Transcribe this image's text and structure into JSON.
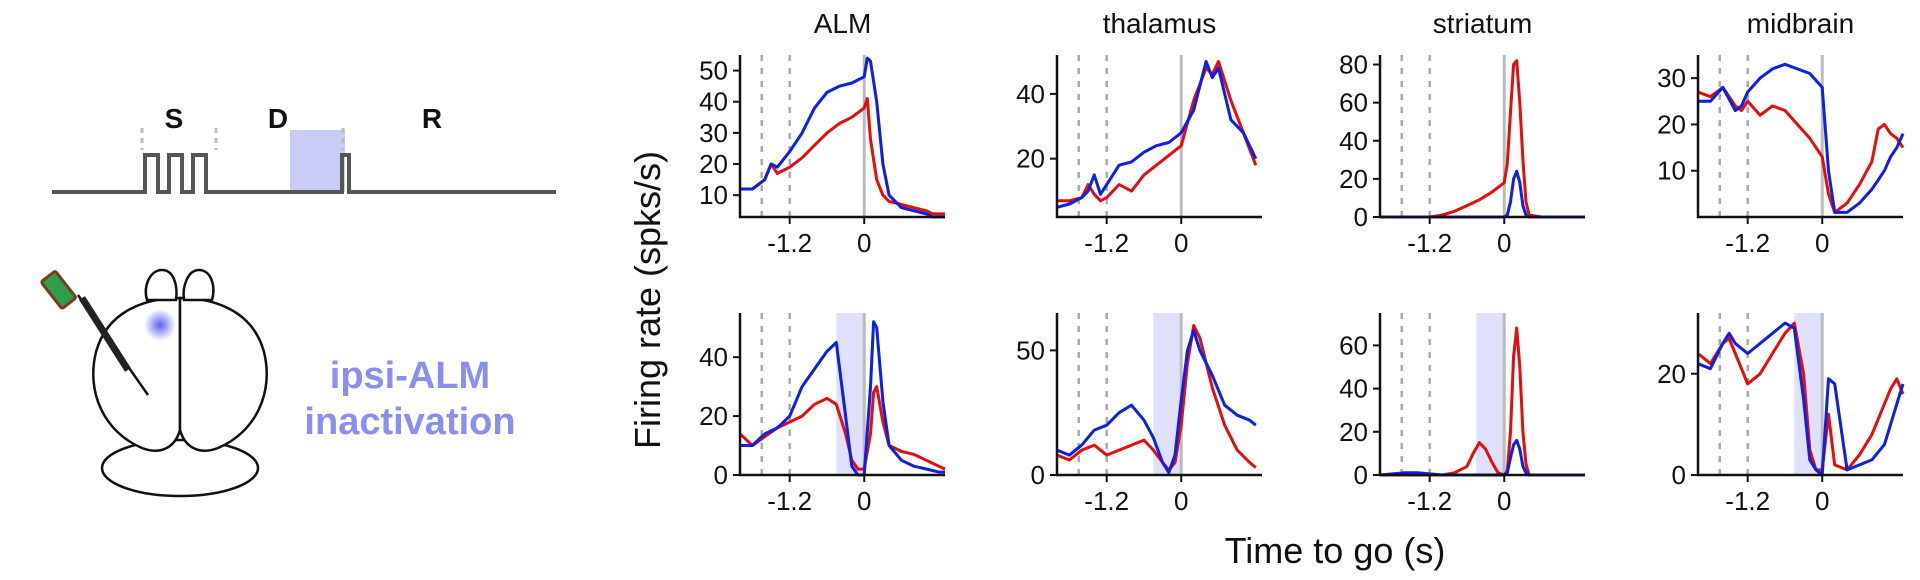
{
  "schematic": {
    "epochs": [
      "S",
      "D",
      "R"
    ],
    "inactivation_label": [
      "ipsi-ALM",
      "inactivation"
    ],
    "colors": {
      "trace": "#555555",
      "light": "#c9ccf7",
      "laser": "#7b80f2"
    }
  },
  "labels": {
    "ylabel": "Firing rate (spks/s)",
    "xlabel": "Time to go (s)"
  },
  "chart_data": [
    {
      "type": "line",
      "title": "ALM",
      "row": "control",
      "ylim": [
        3,
        55
      ],
      "yticks": [
        10,
        20,
        30,
        40,
        50
      ],
      "xlim": [
        -2.0,
        1.3
      ],
      "xticks": [
        -1.2,
        0
      ],
      "xticklabels": [
        "-1.2",
        "0"
      ],
      "epoch_lines": [
        -1.65,
        -1.2
      ],
      "go_line": 0,
      "shade": null,
      "series": [
        {
          "color": "#e01010",
          "x": [
            -2.0,
            -1.8,
            -1.6,
            -1.5,
            -1.4,
            -1.2,
            -1.0,
            -0.8,
            -0.6,
            -0.4,
            -0.2,
            0.0,
            0.05,
            0.1,
            0.2,
            0.3,
            0.4,
            0.6,
            0.8,
            1.0,
            1.1,
            1.3
          ],
          "y": [
            12,
            12,
            15,
            20,
            17,
            19,
            22,
            26,
            30,
            33,
            35,
            38,
            41,
            28,
            15,
            10,
            8,
            7,
            6,
            5,
            4,
            4
          ]
        },
        {
          "color": "#1020e0",
          "x": [
            -2.0,
            -1.8,
            -1.6,
            -1.5,
            -1.4,
            -1.2,
            -1.0,
            -0.8,
            -0.6,
            -0.4,
            -0.2,
            0.0,
            0.05,
            0.1,
            0.2,
            0.3,
            0.4,
            0.6,
            0.8,
            1.0,
            1.1,
            1.3
          ],
          "y": [
            12,
            12,
            15,
            20,
            19,
            24,
            30,
            38,
            43,
            45,
            46,
            48,
            54,
            53,
            40,
            20,
            10,
            6,
            5,
            4,
            3,
            3
          ]
        }
      ]
    },
    {
      "type": "line",
      "title": "thalamus",
      "row": "control",
      "ylim": [
        2,
        52
      ],
      "yticks": [
        20,
        40
      ],
      "xlim": [
        -2.0,
        1.3
      ],
      "xticks": [
        -1.2,
        0
      ],
      "xticklabels": [
        "-1.2",
        "0"
      ],
      "epoch_lines": [
        -1.65,
        -1.2
      ],
      "go_line": 0,
      "shade": null,
      "series": [
        {
          "color": "#e01010",
          "x": [
            -2.0,
            -1.8,
            -1.6,
            -1.5,
            -1.4,
            -1.3,
            -1.2,
            -1.0,
            -0.8,
            -0.6,
            -0.4,
            -0.2,
            0.0,
            0.2,
            0.4,
            0.5,
            0.6,
            0.8,
            1.0,
            1.2
          ],
          "y": [
            7,
            7,
            8,
            12,
            9,
            7,
            8,
            12,
            10,
            15,
            18,
            21,
            24,
            38,
            48,
            46,
            50,
            38,
            28,
            18
          ]
        },
        {
          "color": "#1020e0",
          "x": [
            -2.0,
            -1.8,
            -1.6,
            -1.5,
            -1.4,
            -1.3,
            -1.2,
            -1.0,
            -0.8,
            -0.6,
            -0.4,
            -0.2,
            0.0,
            0.2,
            0.4,
            0.5,
            0.6,
            0.8,
            1.0,
            1.2
          ],
          "y": [
            5,
            6,
            8,
            10,
            15,
            9,
            12,
            18,
            19,
            22,
            24,
            25,
            28,
            35,
            50,
            45,
            48,
            32,
            28,
            20
          ]
        }
      ]
    },
    {
      "type": "line",
      "title": "striatum",
      "row": "control",
      "ylim": [
        0,
        85
      ],
      "yticks": [
        0,
        20,
        40,
        60,
        80
      ],
      "xlim": [
        -2.0,
        1.3
      ],
      "xticks": [
        -1.2,
        0
      ],
      "xticklabels": [
        "-1.2",
        "0"
      ],
      "epoch_lines": [
        -1.65,
        -1.2
      ],
      "go_line": 0,
      "shade": null,
      "series": [
        {
          "color": "#e01010",
          "x": [
            -2.0,
            -1.4,
            -1.2,
            -1.0,
            -0.8,
            -0.6,
            -0.4,
            -0.2,
            0.0,
            0.05,
            0.1,
            0.15,
            0.2,
            0.25,
            0.3,
            0.35,
            0.4,
            0.6,
            1.3
          ],
          "y": [
            0,
            0,
            0,
            1,
            3,
            6,
            9,
            13,
            18,
            28,
            55,
            80,
            82,
            60,
            30,
            8,
            1,
            0,
            0
          ]
        },
        {
          "color": "#1020e0",
          "x": [
            -2.0,
            -1.0,
            -0.5,
            0.0,
            0.05,
            0.1,
            0.15,
            0.2,
            0.25,
            0.3,
            0.35,
            0.4,
            0.6,
            1.3
          ],
          "y": [
            0,
            0,
            0,
            0,
            1,
            8,
            20,
            24,
            18,
            6,
            1,
            0,
            0,
            0
          ]
        }
      ]
    },
    {
      "type": "line",
      "title": "midbrain",
      "row": "control",
      "ylim": [
        0,
        35
      ],
      "yticks": [
        10,
        20,
        30
      ],
      "xlim": [
        -2.0,
        1.3
      ],
      "xticks": [
        -1.2,
        0
      ],
      "xticklabels": [
        "-1.2",
        "0"
      ],
      "epoch_lines": [
        -1.65,
        -1.2
      ],
      "go_line": 0,
      "shade": null,
      "series": [
        {
          "color": "#e01010",
          "x": [
            -2.0,
            -1.8,
            -1.6,
            -1.4,
            -1.3,
            -1.2,
            -1.0,
            -0.8,
            -0.6,
            -0.4,
            -0.2,
            0.0,
            0.1,
            0.2,
            0.4,
            0.6,
            0.8,
            0.9,
            1.0,
            1.1,
            1.2,
            1.3
          ],
          "y": [
            27,
            26,
            28,
            24,
            23,
            25,
            22,
            24,
            23,
            20,
            17,
            13,
            5,
            1,
            3,
            7,
            12,
            19,
            20,
            18,
            17,
            15
          ]
        },
        {
          "color": "#1020e0",
          "x": [
            -2.0,
            -1.8,
            -1.6,
            -1.4,
            -1.3,
            -1.2,
            -1.0,
            -0.8,
            -0.6,
            -0.4,
            -0.2,
            0.0,
            0.1,
            0.2,
            0.4,
            0.6,
            0.8,
            0.9,
            1.0,
            1.1,
            1.2,
            1.3
          ],
          "y": [
            25,
            25,
            28,
            23,
            24,
            27,
            30,
            32,
            33,
            32,
            31,
            28,
            10,
            1,
            1,
            3,
            6,
            8,
            10,
            13,
            15,
            18
          ]
        }
      ]
    },
    {
      "type": "line",
      "title": "",
      "row": "inactivation",
      "ylim": [
        0,
        55
      ],
      "yticks": [
        0,
        20,
        40
      ],
      "xlim": [
        -2.0,
        1.3
      ],
      "xticks": [
        -1.2,
        0
      ],
      "xticklabels": [
        "-1.2",
        "0"
      ],
      "epoch_lines": [
        -1.65,
        -1.2
      ],
      "go_line": 0,
      "shade": [
        -0.45,
        0
      ],
      "series": [
        {
          "color": "#e01010",
          "x": [
            -2.0,
            -1.8,
            -1.6,
            -1.4,
            -1.2,
            -1.0,
            -0.8,
            -0.6,
            -0.45,
            -0.3,
            -0.2,
            -0.1,
            0.0,
            0.1,
            0.15,
            0.2,
            0.3,
            0.4,
            0.6,
            0.8,
            1.0,
            1.2,
            1.3
          ],
          "y": [
            14,
            10,
            13,
            16,
            18,
            20,
            24,
            26,
            24,
            14,
            5,
            2,
            2,
            14,
            28,
            30,
            18,
            10,
            8,
            7,
            5,
            3,
            2
          ]
        },
        {
          "color": "#1020e0",
          "x": [
            -2.0,
            -1.8,
            -1.6,
            -1.4,
            -1.2,
            -1.0,
            -0.8,
            -0.6,
            -0.45,
            -0.3,
            -0.2,
            -0.1,
            0.0,
            0.1,
            0.15,
            0.2,
            0.3,
            0.4,
            0.6,
            0.8,
            1.0,
            1.2,
            1.3
          ],
          "y": [
            10,
            10,
            14,
            16,
            20,
            30,
            36,
            42,
            45,
            20,
            3,
            0,
            0,
            30,
            52,
            50,
            25,
            10,
            5,
            3,
            2,
            1,
            1
          ]
        }
      ]
    },
    {
      "type": "line",
      "title": "",
      "row": "inactivation",
      "ylim": [
        0,
        65
      ],
      "yticks": [
        0,
        50
      ],
      "xlim": [
        -2.0,
        1.3
      ],
      "xticks": [
        -1.2,
        0
      ],
      "xticklabels": [
        "-1.2",
        "0"
      ],
      "epoch_lines": [
        -1.65,
        -1.2
      ],
      "go_line": 0,
      "shade": [
        -0.45,
        0
      ],
      "series": [
        {
          "color": "#e01010",
          "x": [
            -2.0,
            -1.8,
            -1.6,
            -1.4,
            -1.2,
            -1.0,
            -0.8,
            -0.6,
            -0.45,
            -0.3,
            -0.2,
            -0.1,
            0.0,
            0.1,
            0.2,
            0.3,
            0.5,
            0.7,
            0.9,
            1.1,
            1.2
          ],
          "y": [
            8,
            6,
            10,
            12,
            8,
            10,
            12,
            14,
            10,
            5,
            2,
            5,
            20,
            45,
            60,
            55,
            35,
            20,
            10,
            5,
            3
          ]
        },
        {
          "color": "#1020e0",
          "x": [
            -2.0,
            -1.8,
            -1.6,
            -1.4,
            -1.2,
            -1.0,
            -0.8,
            -0.6,
            -0.45,
            -0.3,
            -0.2,
            -0.1,
            0.0,
            0.1,
            0.2,
            0.3,
            0.5,
            0.7,
            0.9,
            1.1,
            1.2
          ],
          "y": [
            10,
            8,
            12,
            18,
            20,
            25,
            28,
            22,
            15,
            5,
            1,
            8,
            30,
            50,
            58,
            50,
            40,
            28,
            24,
            22,
            20
          ]
        }
      ]
    },
    {
      "type": "line",
      "title": "",
      "row": "inactivation",
      "ylim": [
        0,
        75
      ],
      "yticks": [
        0,
        20,
        40,
        60
      ],
      "xlim": [
        -2.0,
        1.3
      ],
      "xticks": [
        -1.2,
        0
      ],
      "xticklabels": [
        "-1.2",
        "0"
      ],
      "epoch_lines": [
        -1.65,
        -1.2
      ],
      "go_line": 0,
      "shade": [
        -0.45,
        0
      ],
      "series": [
        {
          "color": "#e01010",
          "x": [
            -2.0,
            -1.0,
            -0.8,
            -0.6,
            -0.5,
            -0.4,
            -0.3,
            -0.2,
            -0.1,
            0.0,
            0.05,
            0.1,
            0.15,
            0.2,
            0.25,
            0.3,
            0.35,
            0.4,
            0.6,
            1.3
          ],
          "y": [
            0,
            0,
            1,
            4,
            10,
            15,
            12,
            6,
            1,
            0,
            2,
            20,
            55,
            68,
            50,
            20,
            5,
            0,
            0,
            0
          ]
        },
        {
          "color": "#1020e0",
          "x": [
            -2.0,
            -1.6,
            -1.4,
            -1.0,
            -0.5,
            0.0,
            0.05,
            0.1,
            0.15,
            0.2,
            0.25,
            0.3,
            0.35,
            0.4,
            0.6,
            1.3
          ],
          "y": [
            0,
            1,
            1,
            0,
            0,
            0,
            1,
            8,
            14,
            16,
            12,
            4,
            1,
            0,
            0,
            0
          ]
        }
      ]
    },
    {
      "type": "line",
      "title": "",
      "row": "inactivation",
      "ylim": [
        0,
        32
      ],
      "yticks": [
        0,
        20
      ],
      "xlim": [
        -2.0,
        1.3
      ],
      "xticks": [
        -1.2,
        0
      ],
      "xticklabels": [
        "-1.2",
        "0"
      ],
      "epoch_lines": [
        -1.65,
        -1.2
      ],
      "go_line": 0,
      "shade": [
        -0.45,
        0
      ],
      "series": [
        {
          "color": "#e01010",
          "x": [
            -2.0,
            -1.8,
            -1.6,
            -1.5,
            -1.4,
            -1.2,
            -1.0,
            -0.8,
            -0.6,
            -0.45,
            -0.3,
            -0.2,
            -0.1,
            0.0,
            0.1,
            0.2,
            0.4,
            0.6,
            0.8,
            1.0,
            1.1,
            1.2,
            1.3
          ],
          "y": [
            24,
            22,
            26,
            27,
            24,
            18,
            20,
            24,
            28,
            30,
            20,
            5,
            1,
            1,
            12,
            2,
            1,
            4,
            8,
            14,
            17,
            19,
            16
          ]
        },
        {
          "color": "#1020e0",
          "x": [
            -2.0,
            -1.8,
            -1.6,
            -1.5,
            -1.4,
            -1.2,
            -1.0,
            -0.8,
            -0.6,
            -0.45,
            -0.3,
            -0.2,
            -0.1,
            0.0,
            0.1,
            0.2,
            0.4,
            0.6,
            0.8,
            1.0,
            1.1,
            1.2,
            1.3
          ],
          "y": [
            22,
            21,
            26,
            28,
            26,
            24,
            26,
            28,
            30,
            29,
            15,
            3,
            1,
            0,
            19,
            18,
            1,
            2,
            3,
            6,
            10,
            14,
            18
          ]
        }
      ]
    }
  ]
}
